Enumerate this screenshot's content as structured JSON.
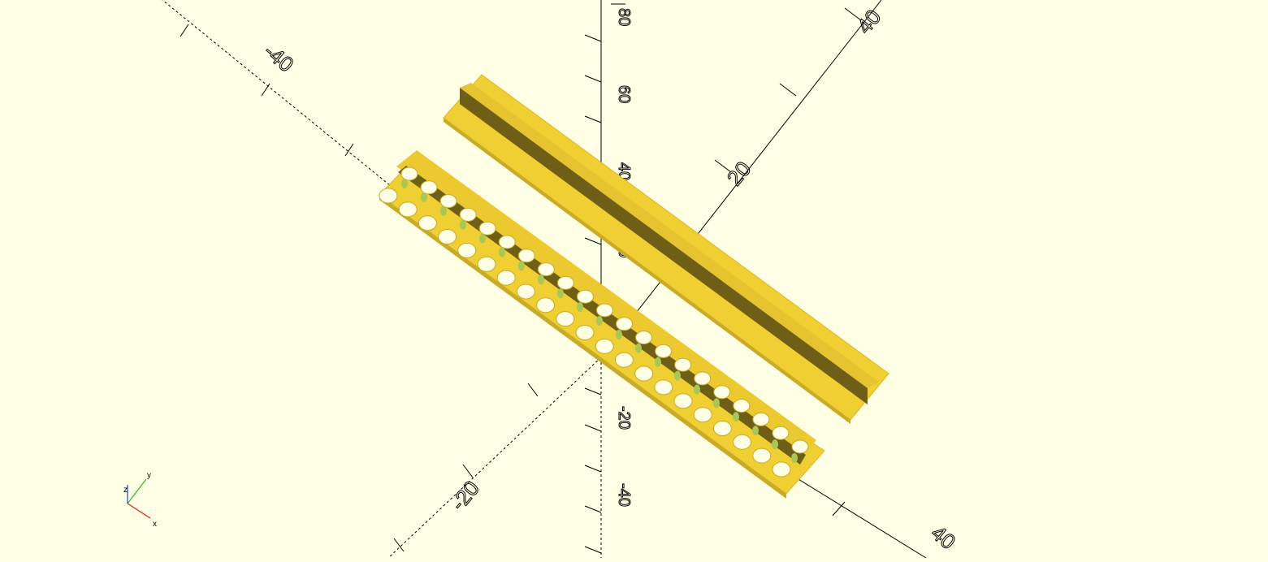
{
  "viewport": {
    "background": "#ffffe5",
    "model_color": "#f0cf32",
    "model_shadow": "#6e5e16",
    "hole_green": "#a6c857",
    "axis_color": "#000000"
  },
  "axis_labels": {
    "x_neg": "-40",
    "x_pos": "40",
    "y_pos": "40",
    "y_mid": "20",
    "y_neg": "-20",
    "z_high": "80",
    "z_60": "60",
    "z_40": "40",
    "z_20": "20",
    "z_neg20": "-20",
    "z_neg40": "-40"
  },
  "gizmo": {
    "x_label": "x",
    "y_label": "y",
    "z_label": "z",
    "x_color": "#e02020",
    "y_color": "#20c020",
    "z_color": "#2040e0"
  },
  "models": [
    {
      "name": "solid-t-profile-rail"
    },
    {
      "name": "perforated-channel-rail"
    }
  ]
}
